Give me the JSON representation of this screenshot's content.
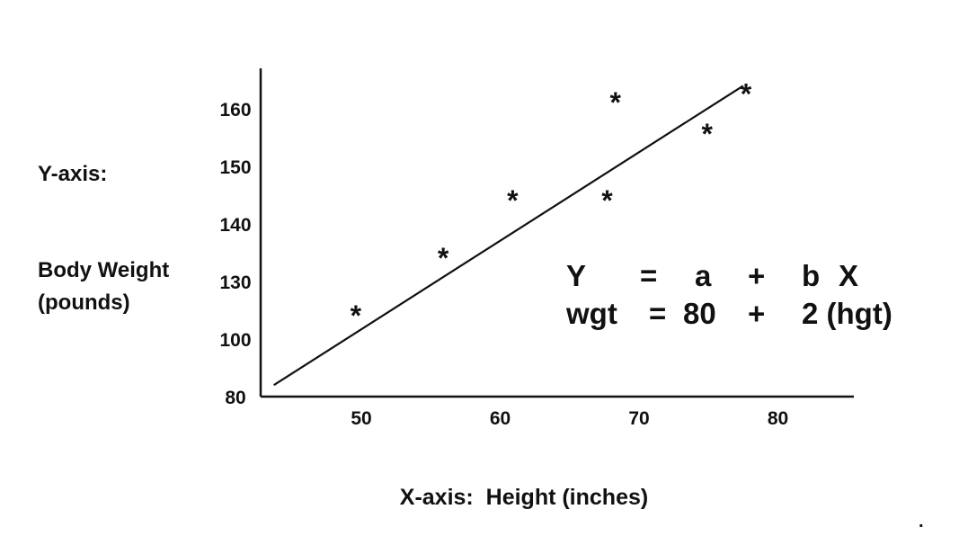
{
  "chart_data": {
    "type": "scatter",
    "title": "",
    "ylabel_prefix": "Y-axis:",
    "ylabel_lines": [
      "Body Weight",
      "(pounds)"
    ],
    "xlabel": "X-axis:  Height (inches)",
    "x_ticks": [
      "50",
      "60",
      "70",
      "80"
    ],
    "y_ticks": [
      "80",
      "100",
      "130",
      "140",
      "150",
      "160"
    ],
    "points": [
      {
        "x": 49.6,
        "y_tick_pos": 1.55
      },
      {
        "x": 55.9,
        "y_tick_pos": 2.55
      },
      {
        "x": 60.9,
        "y_tick_pos": 3.55
      },
      {
        "x": 67.7,
        "y_tick_pos": 3.55
      },
      {
        "x": 68.3,
        "y_tick_pos": 5.25
      },
      {
        "x": 74.9,
        "y_tick_pos": 4.7
      },
      {
        "x": 77.7,
        "y_tick_pos": 5.4
      }
    ],
    "fit_line": {
      "from": {
        "x": 43.7,
        "y_tick_pos": 0.2
      },
      "to": {
        "x": 77.5,
        "y_tick_pos": 5.4
      }
    },
    "marker_symbol": "*",
    "equation": {
      "row1": [
        "Y",
        "=",
        "a",
        "+",
        "b",
        "X"
      ],
      "row2": [
        "wgt",
        "=",
        "80",
        "+",
        "2 (hgt)"
      ]
    },
    "grid": false
  },
  "stray_mark": "."
}
